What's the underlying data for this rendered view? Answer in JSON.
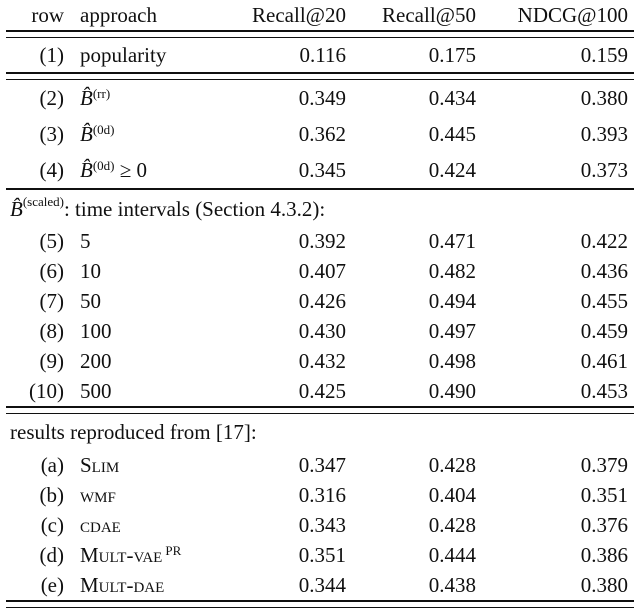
{
  "table": {
    "columns": {
      "row": "row",
      "approach": "approach",
      "recall20": "Recall@20",
      "recall50": "Recall@50",
      "ndcg100": "NDCG@100"
    },
    "sections": [
      {
        "rows": [
          {
            "num": "(1)",
            "approach": "popularity",
            "recall20": "0.116",
            "recall50": "0.175",
            "ndcg100": "0.159"
          }
        ]
      },
      {
        "rows": [
          {
            "num": "(2)",
            "approach_base": "B̂",
            "approach_sup": "(rr)",
            "recall20": "0.349",
            "recall50": "0.434",
            "ndcg100": "0.380"
          },
          {
            "num": "(3)",
            "approach_base": "B̂",
            "approach_sup": "(0d)",
            "recall20": "0.362",
            "recall50": "0.445",
            "ndcg100": "0.393"
          },
          {
            "num": "(4)",
            "approach_base": "B̂",
            "approach_sup": "(0d)",
            "approach_rest": " ≥ 0",
            "recall20": "0.345",
            "recall50": "0.424",
            "ndcg100": "0.373"
          }
        ]
      },
      {
        "heading": {
          "base": "B̂",
          "sup": "(scaled)",
          "rest": ": time intervals (Section 4.3.2):"
        },
        "rows": [
          {
            "num": "(5)",
            "approach": "5",
            "recall20": "0.392",
            "recall50": "0.471",
            "ndcg100": "0.422"
          },
          {
            "num": "(6)",
            "approach": "10",
            "recall20": "0.407",
            "recall50": "0.482",
            "ndcg100": "0.436"
          },
          {
            "num": "(7)",
            "approach": "50",
            "recall20": "0.426",
            "recall50": "0.494",
            "ndcg100": "0.455"
          },
          {
            "num": "(8)",
            "approach": "100",
            "recall20": "0.430",
            "recall50": "0.497",
            "ndcg100": "0.459"
          },
          {
            "num": "(9)",
            "approach": "200",
            "recall20": "0.432",
            "recall50": "0.498",
            "ndcg100": "0.461"
          },
          {
            "num": "(10)",
            "approach": "500",
            "recall20": "0.425",
            "recall50": "0.490",
            "ndcg100": "0.453"
          }
        ]
      },
      {
        "heading": {
          "label": "results reproduced from [17]:"
        },
        "rows": [
          {
            "num": "(a)",
            "approach": "Slim",
            "recall20": "0.347",
            "recall50": "0.428",
            "ndcg100": "0.379"
          },
          {
            "num": "(b)",
            "approach": "wmf",
            "recall20": "0.316",
            "recall50": "0.404",
            "ndcg100": "0.351"
          },
          {
            "num": "(c)",
            "approach": "cdae",
            "recall20": "0.343",
            "recall50": "0.428",
            "ndcg100": "0.376"
          },
          {
            "num": "(d)",
            "approach": "Mult-vae",
            "approach_sup": "PR",
            "recall20": "0.351",
            "recall50": "0.444",
            "ndcg100": "0.386"
          },
          {
            "num": "(e)",
            "approach": "Mult-dae",
            "recall20": "0.344",
            "recall50": "0.438",
            "ndcg100": "0.380"
          }
        ]
      }
    ]
  }
}
